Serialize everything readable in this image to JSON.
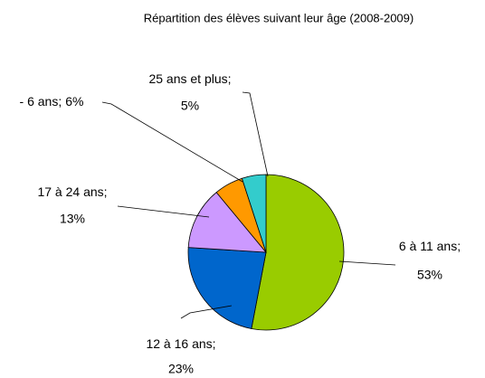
{
  "chart_data": {
    "type": "pie",
    "title": "Répartition des élèves suivant leur âge (2008-2009)",
    "categories": [
      "6 à 11 ans",
      "12 à 16 ans",
      "17 à 24 ans",
      "- 6 ans",
      "25 ans et plus"
    ],
    "values": [
      53,
      23,
      13,
      6,
      5
    ],
    "value_labels": [
      "53%",
      "23%",
      "13%",
      "6%",
      "5%"
    ],
    "separator": ";",
    "colors": [
      "#99cc00",
      "#0066cc",
      "#cc99ff",
      "#ff9900",
      "#33cccc"
    ]
  }
}
